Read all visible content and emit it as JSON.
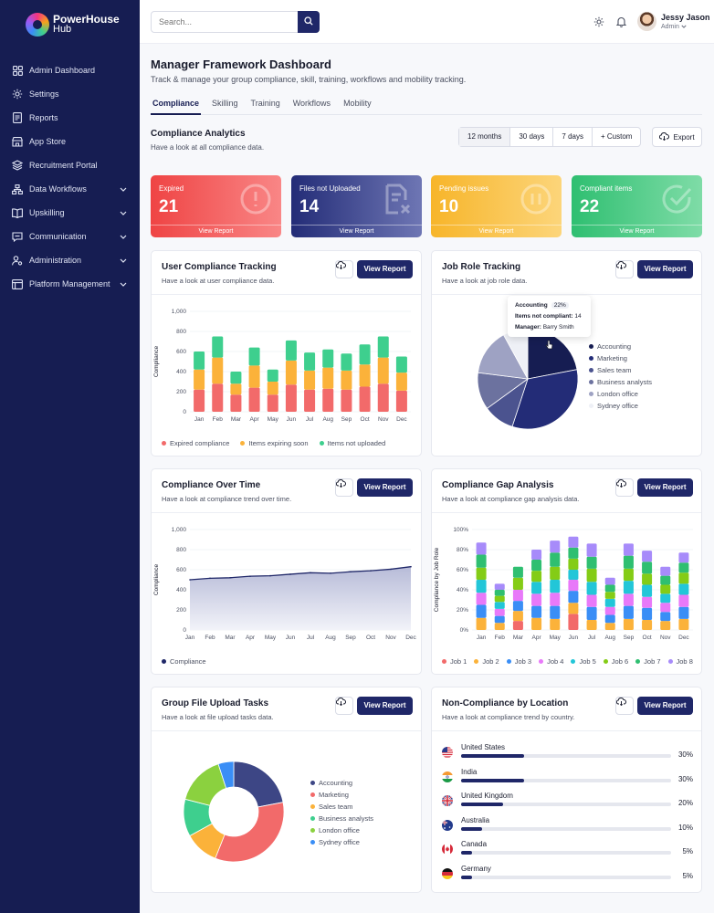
{
  "app": {
    "brand_line1": "PowerHouse",
    "brand_line2": "Hub"
  },
  "sidebar": {
    "items": [
      {
        "label": "Admin Dashboard",
        "icon": "grid-icon",
        "expandable": false
      },
      {
        "label": "Settings",
        "icon": "gear-icon",
        "expandable": false
      },
      {
        "label": "Reports",
        "icon": "document-icon",
        "expandable": false
      },
      {
        "label": "App Store",
        "icon": "store-icon",
        "expandable": false
      },
      {
        "label": "Recruitment Portal",
        "icon": "layers-icon",
        "expandable": false
      },
      {
        "label": "Data Workflows",
        "icon": "workflow-icon",
        "expandable": true
      },
      {
        "label": "Upskilling",
        "icon": "book-icon",
        "expandable": true
      },
      {
        "label": "Communication",
        "icon": "chat-icon",
        "expandable": true
      },
      {
        "label": "Administration",
        "icon": "user-gear-icon",
        "expandable": true
      },
      {
        "label": "Platform Management",
        "icon": "platform-icon",
        "expandable": true
      }
    ]
  },
  "topbar": {
    "search_placeholder": "Search...",
    "user_name": "Jessy Jason",
    "user_role": "Admin"
  },
  "header": {
    "title": "Manager Framework Dashboard",
    "subtitle": "Track & manage your group compliance, skill, training, workflows and mobility tracking."
  },
  "tabs": [
    {
      "label": "Compliance",
      "active": true
    },
    {
      "label": "Skilling",
      "active": false
    },
    {
      "label": "Training",
      "active": false
    },
    {
      "label": "Workflows",
      "active": false
    },
    {
      "label": "Mobility",
      "active": false
    }
  ],
  "analytics": {
    "title": "Compliance Analytics",
    "subtitle": "Have a look at all compliance data.",
    "ranges": [
      {
        "label": "12 months",
        "selected": true
      },
      {
        "label": "30 days",
        "selected": false
      },
      {
        "label": "7 days",
        "selected": false
      },
      {
        "label": "+ Custom",
        "selected": false
      }
    ],
    "export_label": "Export"
  },
  "stats": [
    {
      "label": "Expired",
      "value": "21",
      "link": "View Report",
      "colors": [
        "#ef4444",
        "#f98686"
      ],
      "icon": "alert-circle-icon"
    },
    {
      "label": "Files not Uploaded",
      "value": "14",
      "link": "View Report",
      "colors": [
        "#232c77",
        "#6e76b4"
      ],
      "icon": "file-x-icon"
    },
    {
      "label": "Pending issues",
      "value": "10",
      "link": "View Report",
      "colors": [
        "#f7b52a",
        "#fcd57a"
      ],
      "icon": "pause-circle-icon"
    },
    {
      "label": "Compliant items",
      "value": "22",
      "link": "View Report",
      "colors": [
        "#2fbf71",
        "#7fdca7"
      ],
      "icon": "check-circle-icon"
    }
  ],
  "view_report": "View Report",
  "user_compliance": {
    "title": "User Compliance Tracking",
    "subtitle": "Have a look at user compliance data.",
    "chart_data": {
      "type": "bar",
      "stacked": true,
      "categories": [
        "Jan",
        "Feb",
        "Mar",
        "Apr",
        "May",
        "Jun",
        "Jul",
        "Aug",
        "Sep",
        "Oct",
        "Nov",
        "Dec"
      ],
      "series": [
        {
          "name": "Expired compliance",
          "color": "#f26a6a",
          "values": [
            220,
            280,
            170,
            240,
            170,
            270,
            220,
            230,
            220,
            250,
            280,
            210
          ]
        },
        {
          "name": "Items expiring soon",
          "color": "#fbb23a",
          "values": [
            200,
            260,
            110,
            220,
            130,
            240,
            190,
            210,
            190,
            220,
            260,
            180
          ]
        },
        {
          "name": "Items not uploaded",
          "color": "#3ecf8e",
          "values": [
            180,
            210,
            120,
            180,
            120,
            200,
            180,
            180,
            170,
            200,
            210,
            160
          ]
        }
      ],
      "ylabel": "Compliance",
      "ylim": [
        0,
        1000
      ],
      "yticks": [
        "0",
        "200",
        "400",
        "600",
        "800",
        "1,000"
      ],
      "legend": "bottom"
    }
  },
  "job_role": {
    "title": "Job Role Tracking",
    "subtitle": "Have a look at job role data.",
    "tooltip": {
      "role": "Accounting",
      "pct": "22%",
      "items_label": "Items not compliant:",
      "items_value": "14",
      "manager_label": "Manager:",
      "manager_value": "Barry Smith"
    },
    "chart_data": {
      "type": "pie",
      "labels": [
        "Accounting",
        "Marketing",
        "Sales team",
        "Business analysts",
        "London office",
        "Sydney office"
      ],
      "values": [
        22,
        33,
        10,
        12,
        15,
        8
      ],
      "colors": [
        "#161d52",
        "#232c77",
        "#4b538f",
        "#6c729f",
        "#9ea2c3",
        "#eef0f6"
      ],
      "legend": "right"
    }
  },
  "compliance_time": {
    "title": "Compliance Over Time",
    "subtitle": "Have a look at compliance trend over time.",
    "chart_data": {
      "type": "area",
      "categories": [
        "Jan",
        "Feb",
        "Mar",
        "Apr",
        "May",
        "Jun",
        "Jul",
        "Aug",
        "Sep",
        "Oct",
        "Nov",
        "Dec"
      ],
      "series": [
        {
          "name": "Compliance",
          "color": "#1f2768",
          "values": [
            500,
            515,
            520,
            535,
            540,
            555,
            570,
            565,
            580,
            590,
            605,
            630
          ]
        }
      ],
      "ylabel": "Compliance",
      "ylim": [
        0,
        1000
      ],
      "yticks": [
        "0",
        "200",
        "400",
        "600",
        "800",
        "1,000"
      ],
      "legend": "bottom"
    }
  },
  "gap": {
    "title": "Compliance Gap Analysis",
    "subtitle": "Have a look at compliance gap analysis data.",
    "chart_data": {
      "type": "bar",
      "stacked": true,
      "categories": [
        "Jan",
        "Feb",
        "Mar",
        "Apr",
        "May",
        "Jun",
        "Jul",
        "Aug",
        "Sep",
        "Oct",
        "Nov",
        "Dec"
      ],
      "series": [
        {
          "name": "Job 1",
          "color": "#f26a6a",
          "values": [
            0,
            0,
            9,
            0,
            0,
            16,
            0,
            0,
            0,
            0,
            0,
            0
          ]
        },
        {
          "name": "Job 2",
          "color": "#fbb23a",
          "values": [
            12,
            7,
            10,
            12,
            11,
            11,
            10,
            7,
            11,
            10,
            9,
            11
          ]
        },
        {
          "name": "Job 3",
          "color": "#3a8ef6",
          "values": [
            13,
            7,
            10,
            12,
            13,
            12,
            13,
            8,
            13,
            12,
            9,
            12
          ]
        },
        {
          "name": "Job 4",
          "color": "#e879f9",
          "values": [
            12,
            7,
            11,
            12,
            13,
            11,
            12,
            8,
            12,
            11,
            9,
            12
          ]
        },
        {
          "name": "Job 5",
          "color": "#22c6d8",
          "values": [
            13,
            7,
            0,
            12,
            13,
            10,
            13,
            8,
            13,
            12,
            9,
            11
          ]
        },
        {
          "name": "Job 6",
          "color": "#84cc16",
          "values": [
            12,
            6,
            12,
            11,
            13,
            11,
            13,
            7,
            12,
            11,
            9,
            11
          ]
        },
        {
          "name": "Job 7",
          "color": "#2fbf71",
          "values": [
            13,
            6,
            11,
            11,
            14,
            11,
            12,
            7,
            13,
            12,
            9,
            10
          ]
        },
        {
          "name": "Job 8",
          "color": "#a78bfa",
          "values": [
            12,
            6,
            0,
            10,
            12,
            11,
            13,
            7,
            12,
            11,
            9,
            10
          ]
        }
      ],
      "ylabel": "Compliance by Job Role",
      "ylim": [
        0,
        100
      ],
      "yticks": [
        "0%",
        "20%",
        "40%",
        "60%",
        "80%",
        "100%"
      ],
      "legend": "bottom"
    }
  },
  "uploads": {
    "title": "Group File Upload Tasks",
    "subtitle": "Have a look at file upload tasks data.",
    "chart_data": {
      "type": "pie",
      "donut": true,
      "labels": [
        "Accounting",
        "Marketing",
        "Sales team",
        "Business analysts",
        "London office",
        "Sydney office"
      ],
      "values": [
        22,
        34,
        11,
        12,
        16,
        5
      ],
      "colors": [
        "#3d4685",
        "#f26a6a",
        "#fbb23a",
        "#3ecf8e",
        "#8bd13f",
        "#3a8ef6"
      ],
      "legend": "right"
    }
  },
  "location": {
    "title": "Non-Compliance by Location",
    "subtitle": "Have a look at compliance trend by country.",
    "items": [
      {
        "name": "United States",
        "pct": "30%",
        "value": 30,
        "flag": "us-flag-icon"
      },
      {
        "name": "India",
        "pct": "30%",
        "value": 30,
        "flag": "india-flag-icon"
      },
      {
        "name": "United Kingdom",
        "pct": "20%",
        "value": 20,
        "flag": "uk-flag-icon"
      },
      {
        "name": "Australia",
        "pct": "10%",
        "value": 10,
        "flag": "australia-flag-icon"
      },
      {
        "name": "Canada",
        "pct": "5%",
        "value": 5,
        "flag": "canada-flag-icon"
      },
      {
        "name": "Germany",
        "pct": "5%",
        "value": 5,
        "flag": "germany-flag-icon"
      }
    ]
  }
}
